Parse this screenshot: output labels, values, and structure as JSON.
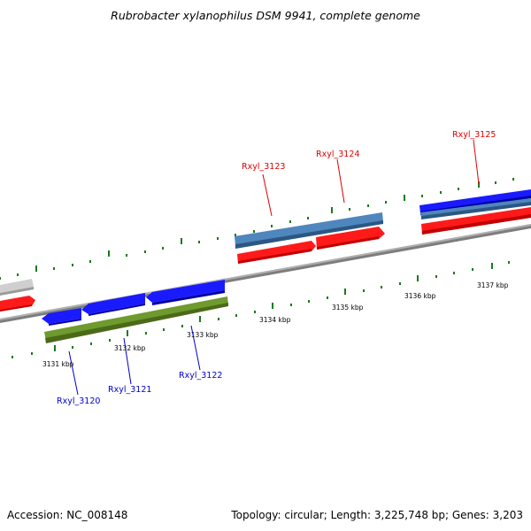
{
  "header": {
    "title": "Rubrobacter xylanophilus DSM 9941, complete genome"
  },
  "footer": {
    "accession": "Accession: NC_008148",
    "summary": "Topology: circular; Length: 3,225,748 bp; Genes: 3,203"
  },
  "ticks": [
    "3131 kbp",
    "3132 kbp",
    "3133 kbp",
    "3134 kbp",
    "3135 kbp",
    "3136 kbp",
    "3137 kbp"
  ],
  "genes": [
    {
      "id": "gene-left-partial-grey",
      "label": "",
      "color": "#c8c8c8",
      "strand": "+"
    },
    {
      "id": "gene-left-partial-red",
      "label": "",
      "color": "#ff0000",
      "strand": "+"
    },
    {
      "id": "gene-rxyl-3120",
      "label": "Rxyl_3120",
      "color": "#0000ff",
      "strand": "-",
      "label_color": "#0000cc"
    },
    {
      "id": "gene-rxyl-3121",
      "label": "Rxyl_3121",
      "color": "#0000ff",
      "strand": "-",
      "label_color": "#0000cc"
    },
    {
      "id": "gene-rxyl-3122",
      "label": "Rxyl_3122",
      "color": "#0000ff",
      "strand": "-",
      "label_color": "#0000cc"
    },
    {
      "id": "gene-olive-band",
      "label": "",
      "color": "#6b8e23",
      "strand": "-"
    },
    {
      "id": "gene-rxyl-3123",
      "label": "Rxyl_3123",
      "color": "#4682b4",
      "strand": "+",
      "label_color": "#dd0000"
    },
    {
      "id": "gene-rxyl-3124",
      "label": "Rxyl_3124",
      "color": "#ff0000",
      "strand": "+",
      "label_color": "#dd0000"
    },
    {
      "id": "gene-rxyl-3125",
      "label": "Rxyl_3125",
      "color": "#0000ff",
      "strand": "+",
      "label_color": "#dd0000"
    }
  ],
  "colors": {
    "backbone": "#8c8c8c",
    "tick_mark": "#1a7a1a",
    "cds_red": "#ff0000",
    "cds_blue": "#0000ff",
    "cds_steel": "#4682b4",
    "cds_olive": "#6b8e23"
  }
}
